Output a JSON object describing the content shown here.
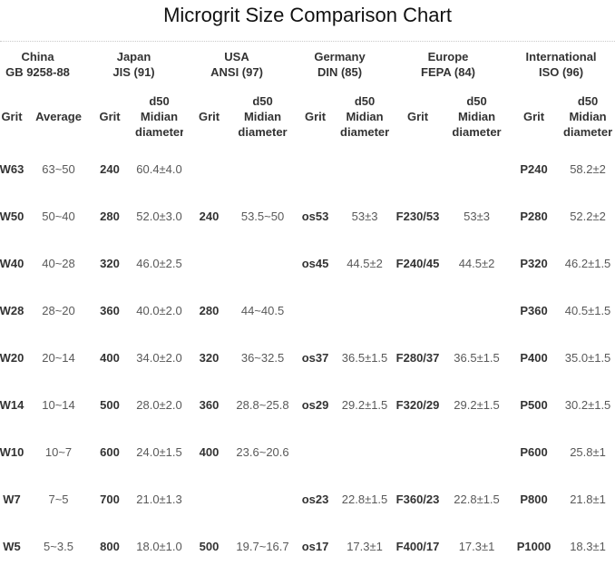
{
  "colors": {
    "title_text": "#111111",
    "header_text": "#333333",
    "value_text": "#595959",
    "divider": "#c9c9c9",
    "background": "#ffffff"
  },
  "chart_data": {
    "type": "table",
    "title": "Microgrit Size Comparison Chart",
    "legend_position": "none",
    "grid": "off",
    "column_groups": [
      {
        "region": "China",
        "standard": "GB 9258-88"
      },
      {
        "region": "Japan",
        "standard": "JIS (91)"
      },
      {
        "region": "USA",
        "standard": "ANSI (97)"
      },
      {
        "region": "Germany",
        "standard": "DIN (85)"
      },
      {
        "region": "Europe",
        "standard": "FEPA (84)"
      },
      {
        "region": "International",
        "standard": "ISO (96)"
      }
    ],
    "sub_columns": [
      "Grit",
      "Average",
      "Grit",
      "d50\nMidian\ndiameter",
      "Grit",
      "d50\nMidian\ndiameter",
      "Grit",
      "d50\nMidian\ndiameter",
      "Grit",
      "d50\nMidian\ndiameter",
      "Grit",
      "d50\nMidian\ndiameter"
    ],
    "rows": [
      [
        "W63",
        "63~50",
        "240",
        "60.4±4.0",
        "",
        "",
        "",
        "",
        "",
        "",
        "P240",
        "58.2±2"
      ],
      [
        "W50",
        "50~40",
        "280",
        "52.0±3.0",
        "240",
        "53.5~50",
        "os53",
        "53±3",
        "F230/53",
        "53±3",
        "P280",
        "52.2±2"
      ],
      [
        "W40",
        "40~28",
        "320",
        "46.0±2.5",
        "",
        "",
        "os45",
        "44.5±2",
        "F240/45",
        "44.5±2",
        "P320",
        "46.2±1.5"
      ],
      [
        "W28",
        "28~20",
        "360",
        "40.0±2.0",
        "280",
        "44~40.5",
        "",
        "",
        "",
        "",
        "P360",
        "40.5±1.5"
      ],
      [
        "W20",
        "20~14",
        "400",
        "34.0±2.0",
        "320",
        "36~32.5",
        "os37",
        "36.5±1.5",
        "F280/37",
        "36.5±1.5",
        "P400",
        "35.0±1.5"
      ],
      [
        "W14",
        "10~14",
        "500",
        "28.0±2.0",
        "360",
        "28.8~25.8",
        "os29",
        "29.2±1.5",
        "F320/29",
        "29.2±1.5",
        "P500",
        "30.2±1.5"
      ],
      [
        "W10",
        "10~7",
        "600",
        "24.0±1.5",
        "400",
        "23.6~20.6",
        "",
        "",
        "",
        "",
        "P600",
        "25.8±1"
      ],
      [
        "W7",
        "7~5",
        "700",
        "21.0±1.3",
        "",
        "",
        "os23",
        "22.8±1.5",
        "F360/23",
        "22.8±1.5",
        "P800",
        "21.8±1"
      ],
      [
        "W5",
        "5~3.5",
        "800",
        "18.0±1.0",
        "500",
        "19.7~16.7",
        "os17",
        "17.3±1",
        "F400/17",
        "17.3±1",
        "P1000",
        "18.3±1"
      ]
    ]
  }
}
